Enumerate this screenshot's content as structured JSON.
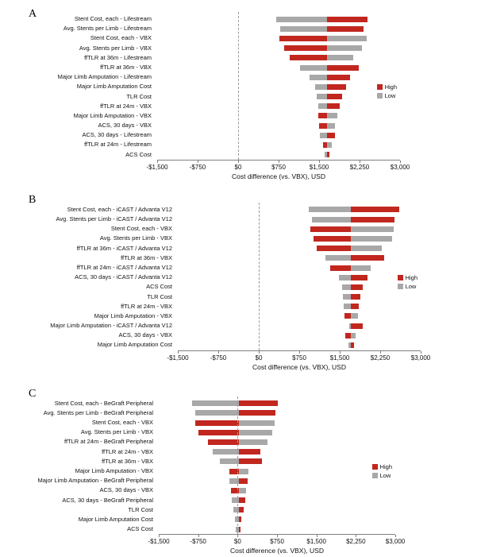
{
  "legend_labels": {
    "high": "High",
    "low": "Low"
  },
  "colors": {
    "high": "#c1271f",
    "low": "#a8a8a8",
    "axis": "#7f7f7f",
    "dash": "#9a9a9a"
  },
  "chart_data": [
    {
      "type": "bar",
      "panel_label": "A",
      "orientation": "horizontal-tornado",
      "xlabel": "Cost difference (vs. VBX), USD",
      "xlim": [
        -1500,
        3000
      ],
      "xticks": [
        -1500,
        -750,
        0,
        750,
        1500,
        2250,
        3000
      ],
      "xtick_labels": [
        "-$1,500",
        "-$750",
        "$0",
        "$750",
        "$1,500",
        "$2,250",
        "$3,000"
      ],
      "baseline": 1650,
      "dashed_line_x": 0,
      "legend_position": "right",
      "categories": [
        "Stent Cost, each - Lifestream",
        "Avg. Stents per Limb - Lifestream",
        "Stent Cost, each - VBX",
        "Avg. Stents per Limb - VBX",
        "ffTLR at 36m - Lifestream",
        "ffTLR at 36m - VBX",
        "Major Limb Amputation - Lifestream",
        "Major Limb Amputation Cost",
        "TLR Cost",
        "ffTLR at 24m - VBX",
        "Major Limb Amputation - VBX",
        "ACS, 30 days - VBX",
        "ACS, 30 days - Lifestream",
        "ffTLR at 24m - Lifestream",
        "ACS Cost"
      ],
      "series": [
        {
          "name": "High",
          "color": "#c1271f",
          "values": [
            2400,
            2330,
            760,
            850,
            960,
            2230,
            2080,
            2000,
            1930,
            1880,
            1480,
            1500,
            1790,
            1570,
            1690
          ]
        },
        {
          "name": "Low",
          "color": "#a8a8a8",
          "values": [
            700,
            780,
            2380,
            2300,
            2130,
            1140,
            1330,
            1420,
            1460,
            1480,
            1840,
            1800,
            1520,
            1730,
            1610
          ]
        }
      ]
    },
    {
      "type": "bar",
      "panel_label": "B",
      "orientation": "horizontal-tornado",
      "xlabel": "Cost difference (vs. VBX), USD",
      "xlim": [
        -1500,
        3000
      ],
      "xticks": [
        -1500,
        -750,
        0,
        750,
        1500,
        2250,
        3000
      ],
      "xtick_labels": [
        "-$1,500",
        "-$750",
        "$0",
        "$750",
        "$1,500",
        "$2,250",
        "$3,000"
      ],
      "baseline": 1700,
      "dashed_line_x": 0,
      "legend_position": "right",
      "categories": [
        "Stent Cost, each - iCAST / Advanta V12",
        "Avg. Stents per Limb - iCAST / Advanta V12",
        "Stent Cost, each - VBX",
        "Avg. Stents per Limb - VBX",
        "ffTLR at 36m - iCAST / Advanta V12",
        "ffTLR at 36m - VBX",
        "ffTLR at 24m - iCAST / Advanta V12",
        "ACS, 30 days - iCAST / Advanta V12",
        "ACS Cost",
        "TLR Cost",
        "ffTLR at 24m - VBX",
        "Major Limb Amputation - VBX",
        "Major Limb Amputation - iCAST / Advanta V12",
        "ACS, 30 days - VBX",
        "Major Limb Amputation Cost"
      ],
      "series": [
        {
          "name": "High",
          "color": "#c1271f",
          "values": [
            2600,
            2520,
            960,
            1010,
            1080,
            2330,
            1330,
            2010,
            1930,
            1880,
            1860,
            1590,
            1920,
            1610,
            1760
          ]
        },
        {
          "name": "Low",
          "color": "#a8a8a8",
          "values": [
            920,
            980,
            2500,
            2470,
            2280,
            1230,
            2080,
            1490,
            1540,
            1560,
            1580,
            1840,
            1680,
            1800,
            1660
          ]
        }
      ]
    },
    {
      "type": "bar",
      "panel_label": "C",
      "orientation": "horizontal-tornado",
      "xlabel": "Cost difference (vs. VBX), USD",
      "xlim": [
        -1500,
        3000
      ],
      "xticks": [
        -1500,
        -750,
        0,
        750,
        1500,
        2250,
        3000
      ],
      "xtick_labels": [
        "-$1,500",
        "-$750",
        "$0",
        "$750",
        "$1,500",
        "$2,250",
        "$3,000"
      ],
      "baseline": 30,
      "dashed_line_x": 0,
      "legend_position": "right",
      "categories": [
        "Stent Cost, each - BeGraft Peripheral",
        "Avg. Stents per Limb - BeGraft Peripheral",
        "Stent Cost, each - VBX",
        "Avg. Stents per Limb - VBX",
        "ffTLR at 24m - BeGraft Peripheral",
        "ffTLR at 24m - VBX",
        "ffTLR at 36m - VBX",
        "Major Limb Amputation - VBX",
        "Major Limb Amputation - BeGraft Peripheral",
        "ACS, 30 days - VBX",
        "ACS, 30 days - BeGraft Peripheral",
        "TLR Cost",
        "Major Limb Amputation Cost",
        "ACS Cost"
      ],
      "series": [
        {
          "name": "High",
          "color": "#c1271f",
          "values": [
            760,
            720,
            -800,
            -740,
            -560,
            430,
            460,
            -160,
            190,
            -130,
            150,
            110,
            70,
            50
          ]
        },
        {
          "name": "Low",
          "color": "#a8a8a8",
          "values": [
            -870,
            -800,
            700,
            660,
            570,
            -480,
            -330,
            200,
            -150,
            160,
            -110,
            -80,
            -50,
            -30
          ]
        }
      ]
    }
  ]
}
